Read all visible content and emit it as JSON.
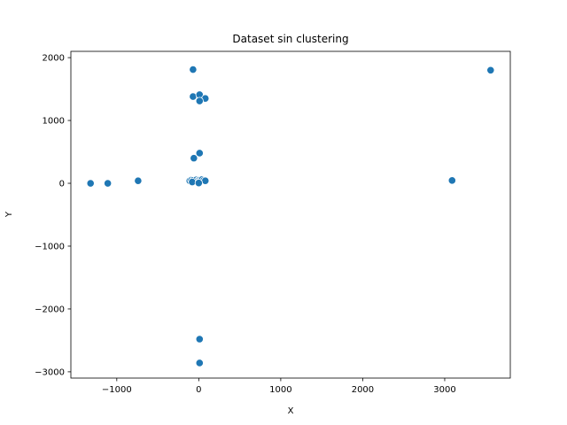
{
  "chart_data": {
    "type": "scatter",
    "title": "Dataset sin clustering",
    "xlabel": "X",
    "ylabel": "Y",
    "xlim": [
      -1560,
      3800
    ],
    "ylim": [
      -3100,
      2100
    ],
    "xticks": [
      -1000,
      0,
      1000,
      2000,
      3000
    ],
    "yticks": [
      -3000,
      -2000,
      -1000,
      0,
      1000,
      2000
    ],
    "xtick_labels": [
      "−1000",
      "0",
      "1000",
      "2000",
      "3000"
    ],
    "ytick_labels": [
      "−3000",
      "−2000",
      "−1000",
      "0",
      "1000",
      "2000"
    ],
    "grid": false,
    "marker_color": "#1f77b4",
    "points": [
      {
        "x": -1320,
        "y": 0
      },
      {
        "x": -1110,
        "y": 0
      },
      {
        "x": -740,
        "y": 40
      },
      {
        "x": -70,
        "y": 1810
      },
      {
        "x": -70,
        "y": 1380
      },
      {
        "x": 10,
        "y": 1410
      },
      {
        "x": 80,
        "y": 1350
      },
      {
        "x": 10,
        "y": 1310
      },
      {
        "x": 10,
        "y": 480
      },
      {
        "x": -60,
        "y": 400
      },
      {
        "x": -110,
        "y": 40
      },
      {
        "x": -90,
        "y": 50
      },
      {
        "x": -70,
        "y": 45
      },
      {
        "x": -50,
        "y": 30
      },
      {
        "x": -30,
        "y": 55
      },
      {
        "x": -10,
        "y": 40
      },
      {
        "x": 10,
        "y": 50
      },
      {
        "x": 20,
        "y": 35
      },
      {
        "x": 40,
        "y": 60
      },
      {
        "x": 60,
        "y": 45
      },
      {
        "x": 80,
        "y": 40
      },
      {
        "x": -80,
        "y": 20
      },
      {
        "x": 0,
        "y": 5
      },
      {
        "x": 10,
        "y": -2480
      },
      {
        "x": 10,
        "y": -2860
      },
      {
        "x": 3090,
        "y": 45
      },
      {
        "x": 3560,
        "y": 1800
      }
    ]
  }
}
